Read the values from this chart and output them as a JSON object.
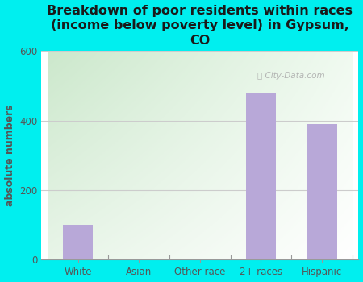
{
  "categories": [
    "White",
    "Asian",
    "Other race",
    "2+ races",
    "Hispanic"
  ],
  "values": [
    100,
    0,
    0,
    480,
    390
  ],
  "bar_color": "#b8a8d8",
  "title": "Breakdown of poor residents within races\n(income below poverty level) in Gypsum,\nCO",
  "ylabel": "absolute numbers",
  "ylim": [
    0,
    600
  ],
  "yticks": [
    0,
    200,
    400,
    600
  ],
  "bg_color": "#00efef",
  "title_fontsize": 11.5,
  "axis_label_fontsize": 9,
  "tick_fontsize": 8.5,
  "title_color": "#1a1a1a",
  "tick_color": "#555555",
  "ylabel_color": "#555555"
}
